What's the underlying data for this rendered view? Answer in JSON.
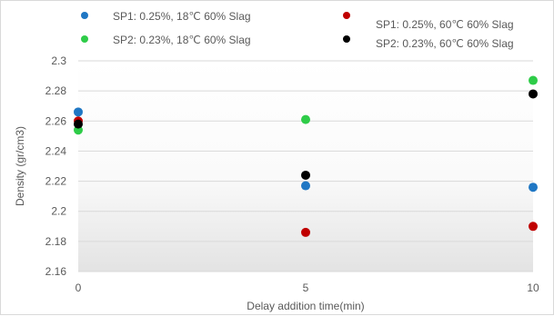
{
  "chart_data": {
    "type": "scatter",
    "xlabel": "Delay addition time(min)",
    "ylabel": "Density (gr/cm3)",
    "xlim": [
      0,
      10
    ],
    "ylim": [
      2.16,
      2.3
    ],
    "x_ticks": [
      "0",
      "5",
      "10"
    ],
    "y_ticks": [
      "2.16",
      "2.18",
      "2.2",
      "2.22",
      "2.24",
      "2.26",
      "2.28",
      "2.3"
    ],
    "grid": "horizontal",
    "background_gradient": true,
    "legend_position": "top",
    "series": [
      {
        "name": "SP1: 0.25%, 18℃ 60% Slag",
        "color": "#1f77c4",
        "x": [
          0,
          5,
          10
        ],
        "y": [
          2.266,
          2.217,
          2.216
        ]
      },
      {
        "name": "SP2: 0.23%, 18℃ 60% Slag",
        "color": "#2ecc48",
        "x": [
          0,
          5,
          10
        ],
        "y": [
          2.254,
          2.261,
          2.287
        ]
      },
      {
        "name": "SP1: 0.25%, 60℃ 60% Slag",
        "color": "#c00000",
        "x": [
          0,
          5,
          10
        ],
        "y": [
          2.26,
          2.186,
          2.19
        ]
      },
      {
        "name": "SP2: 0.23%, 60℃ 60% Slag",
        "color": "#000000",
        "x": [
          0,
          5,
          10
        ],
        "y": [
          2.258,
          2.224,
          2.278
        ]
      }
    ]
  }
}
